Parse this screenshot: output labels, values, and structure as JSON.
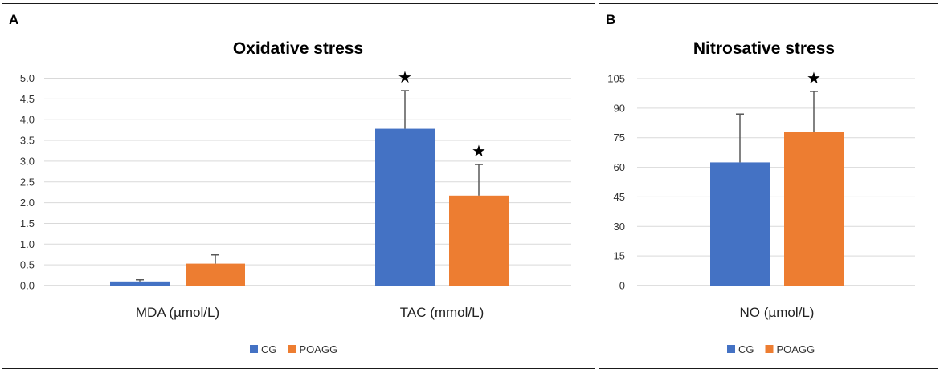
{
  "chart_data": [
    {
      "panel_label": "A",
      "type": "bar",
      "title": "Oxidative stress",
      "categories": [
        "MDA (µmol/L)",
        "TAC (mmol/L)"
      ],
      "yticks": [
        "0.0",
        "0.5",
        "1.0",
        "1.5",
        "2.0",
        "2.5",
        "3.0",
        "3.5",
        "4.0",
        "4.5",
        "5.0"
      ],
      "ylim": [
        0,
        5.0
      ],
      "series": [
        {
          "name": "CG",
          "color": "#4472C4",
          "values": [
            0.1,
            3.78
          ],
          "errors": [
            0.04,
            0.92
          ]
        },
        {
          "name": "POAGG",
          "color": "#ED7D31",
          "values": [
            0.53,
            2.17
          ],
          "errors": [
            0.21,
            0.75
          ]
        }
      ],
      "significance_marker": "★",
      "significant": [
        [
          false,
          true
        ],
        [
          false,
          true
        ]
      ],
      "legend": [
        "CG",
        "POAGG"
      ]
    },
    {
      "panel_label": "B",
      "type": "bar",
      "title": "Nitrosative stress",
      "categories": [
        "NO (µmol/L)"
      ],
      "yticks": [
        "0",
        "15",
        "30",
        "45",
        "60",
        "75",
        "90",
        "105"
      ],
      "ylim": [
        0,
        105
      ],
      "series": [
        {
          "name": "CG",
          "color": "#4472C4",
          "values": [
            62.5
          ],
          "errors": [
            24.5
          ]
        },
        {
          "name": "POAGG",
          "color": "#ED7D31",
          "values": [
            78
          ],
          "errors": [
            20.5
          ]
        }
      ],
      "significance_marker": "★",
      "significant": [
        [
          false
        ],
        [
          true
        ]
      ],
      "legend": [
        "CG",
        "POAGG"
      ]
    }
  ]
}
